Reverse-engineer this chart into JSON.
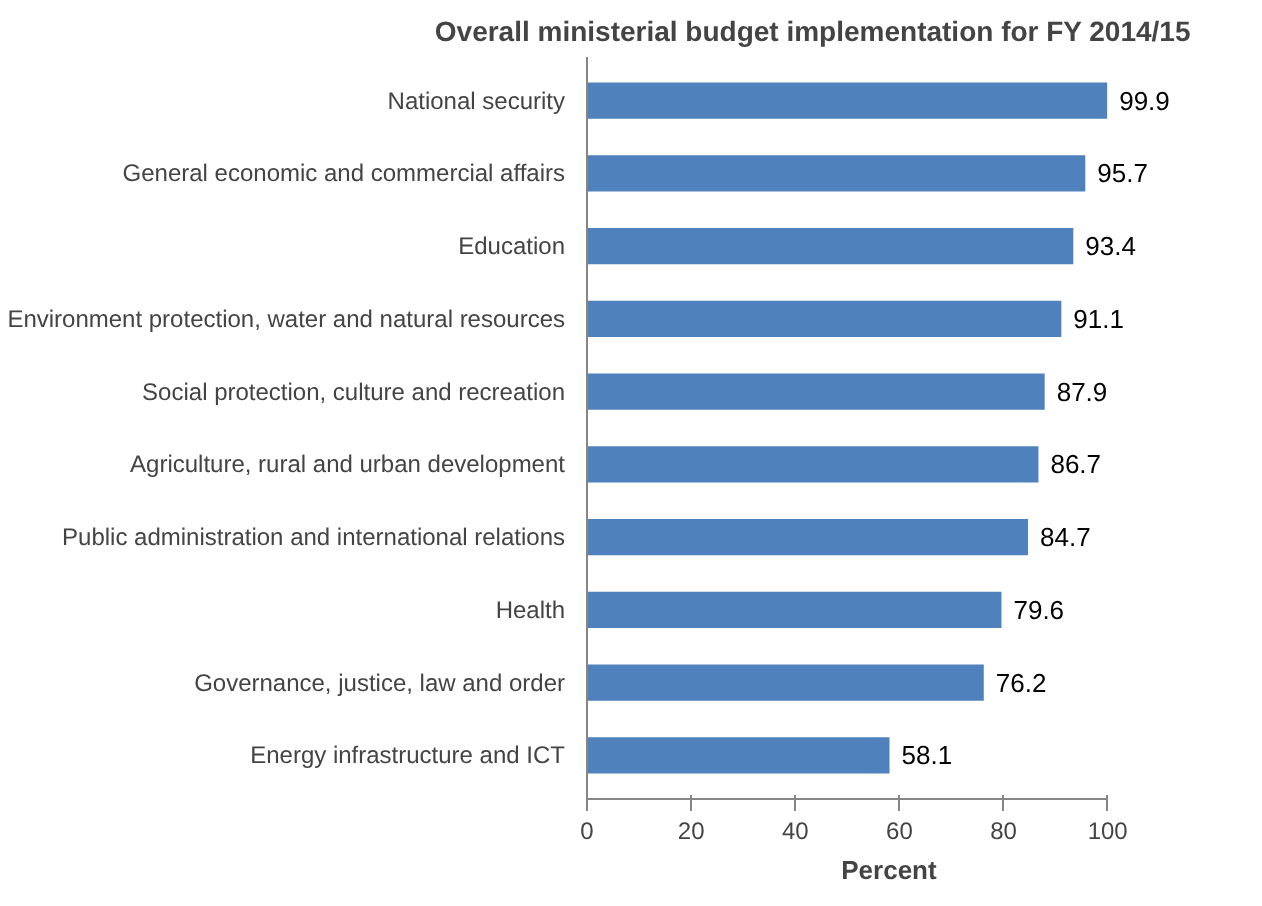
{
  "chart_data": {
    "type": "bar",
    "orientation": "horizontal",
    "title": "Overall ministerial budget implementation for FY 2014/15",
    "xlabel": "Percent",
    "categories": [
      "National security",
      "General economic and commercial affairs",
      "Education",
      "Environment protection, water and natural resources",
      "Social protection, culture and recreation",
      "Agriculture, rural and urban development",
      "Public administration and international relations",
      "Health",
      "Governance, justice, law and order",
      "Energy infrastructure and ICT"
    ],
    "values": [
      99.9,
      95.7,
      93.4,
      91.1,
      87.9,
      86.7,
      84.7,
      79.6,
      76.2,
      58.1
    ],
    "color": "#4f81bd",
    "xlim": [
      0,
      100
    ],
    "xticks": [
      0,
      20,
      40,
      60,
      80,
      100
    ],
    "grid": false,
    "data_labels": true
  }
}
